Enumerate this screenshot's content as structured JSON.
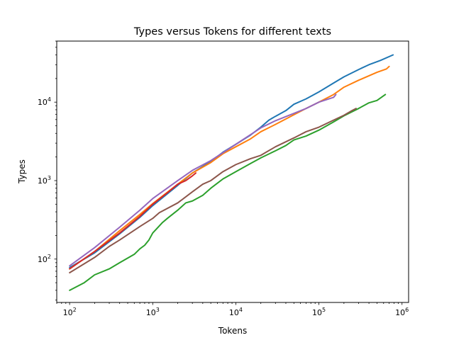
{
  "chart_data": {
    "type": "line",
    "title": "Types versus Tokens for different texts",
    "xlabel": "Tokens",
    "ylabel": "Types",
    "xscale": "log",
    "yscale": "log",
    "xlim": [
      70,
      1200000
    ],
    "ylim": [
      28,
      60000
    ],
    "grid": false,
    "legend": "none",
    "x_ticks": [
      {
        "value": 100,
        "base": "10",
        "exp": "2"
      },
      {
        "value": 1000,
        "base": "10",
        "exp": "3"
      },
      {
        "value": 10000,
        "base": "10",
        "exp": "4"
      },
      {
        "value": 100000,
        "base": "10",
        "exp": "5"
      },
      {
        "value": 1000000,
        "base": "10",
        "exp": "6"
      }
    ],
    "y_ticks": [
      {
        "value": 100,
        "base": "10",
        "exp": "2"
      },
      {
        "value": 1000,
        "base": "10",
        "exp": "3"
      },
      {
        "value": 10000,
        "base": "10",
        "exp": "4"
      }
    ],
    "series": [
      {
        "color": "#1f77b4",
        "points": [
          [
            100,
            78
          ],
          [
            200,
            120
          ],
          [
            400,
            210
          ],
          [
            700,
            340
          ],
          [
            1000,
            480
          ],
          [
            2000,
            870
          ],
          [
            3000,
            1250
          ],
          [
            5000,
            1750
          ],
          [
            7000,
            2300
          ],
          [
            10000,
            2900
          ],
          [
            15000,
            3800
          ],
          [
            20000,
            4800
          ],
          [
            25000,
            5900
          ],
          [
            30000,
            6600
          ],
          [
            40000,
            7800
          ],
          [
            50000,
            9400
          ],
          [
            70000,
            11000
          ],
          [
            100000,
            13500
          ],
          [
            150000,
            17500
          ],
          [
            200000,
            21000
          ],
          [
            300000,
            26000
          ],
          [
            400000,
            30000
          ],
          [
            550000,
            34000
          ],
          [
            780000,
            40000
          ]
        ]
      },
      {
        "color": "#ff7f0e",
        "points": [
          [
            100,
            75
          ],
          [
            200,
            125
          ],
          [
            400,
            230
          ],
          [
            700,
            370
          ],
          [
            1000,
            510
          ],
          [
            2000,
            900
          ],
          [
            3000,
            1250
          ],
          [
            5000,
            1700
          ],
          [
            7000,
            2200
          ],
          [
            10000,
            2700
          ],
          [
            15000,
            3400
          ],
          [
            20000,
            4200
          ],
          [
            30000,
            5200
          ],
          [
            50000,
            6900
          ],
          [
            70000,
            8300
          ],
          [
            100000,
            10000
          ],
          [
            150000,
            12500
          ],
          [
            200000,
            15500
          ],
          [
            300000,
            19000
          ],
          [
            500000,
            24000
          ],
          [
            650000,
            26500
          ],
          [
            700000,
            28500
          ]
        ]
      },
      {
        "color": "#2ca02c",
        "points": [
          [
            100,
            40
          ],
          [
            150,
            50
          ],
          [
            200,
            63
          ],
          [
            300,
            75
          ],
          [
            400,
            90
          ],
          [
            600,
            115
          ],
          [
            700,
            135
          ],
          [
            800,
            150
          ],
          [
            900,
            175
          ],
          [
            1000,
            215
          ],
          [
            1300,
            290
          ],
          [
            1500,
            330
          ],
          [
            2000,
            420
          ],
          [
            2500,
            520
          ],
          [
            3000,
            550
          ],
          [
            4000,
            650
          ],
          [
            5000,
            800
          ],
          [
            7000,
            1050
          ],
          [
            10000,
            1300
          ],
          [
            15000,
            1650
          ],
          [
            20000,
            1950
          ],
          [
            30000,
            2400
          ],
          [
            40000,
            2800
          ],
          [
            50000,
            3300
          ],
          [
            70000,
            3700
          ],
          [
            100000,
            4400
          ],
          [
            150000,
            5600
          ],
          [
            200000,
            6700
          ],
          [
            300000,
            8300
          ],
          [
            400000,
            9800
          ],
          [
            500000,
            10500
          ],
          [
            630000,
            12500
          ]
        ]
      },
      {
        "color": "#d62728",
        "points": [
          [
            100,
            75
          ],
          [
            200,
            125
          ],
          [
            400,
            215
          ],
          [
            700,
            350
          ],
          [
            1000,
            500
          ],
          [
            1500,
            700
          ],
          [
            2000,
            900
          ],
          [
            2500,
            1000
          ],
          [
            3000,
            1150
          ],
          [
            3300,
            1250
          ]
        ]
      },
      {
        "color": "#9467bd",
        "points": [
          [
            100,
            82
          ],
          [
            200,
            140
          ],
          [
            400,
            255
          ],
          [
            700,
            420
          ],
          [
            1000,
            590
          ],
          [
            2000,
            1000
          ],
          [
            3000,
            1350
          ],
          [
            5000,
            1800
          ],
          [
            10000,
            2900
          ],
          [
            20000,
            4700
          ],
          [
            30000,
            5800
          ],
          [
            50000,
            7200
          ],
          [
            70000,
            8300
          ],
          [
            100000,
            10000
          ],
          [
            150000,
            11500
          ],
          [
            160000,
            12500
          ]
        ]
      },
      {
        "color": "#8c564b",
        "points": [
          [
            100,
            67
          ],
          [
            200,
            105
          ],
          [
            300,
            145
          ],
          [
            400,
            175
          ],
          [
            700,
            260
          ],
          [
            1000,
            330
          ],
          [
            1200,
            390
          ],
          [
            2000,
            520
          ],
          [
            3000,
            720
          ],
          [
            4000,
            900
          ],
          [
            5000,
            1000
          ],
          [
            7000,
            1300
          ],
          [
            10000,
            1600
          ],
          [
            15000,
            1900
          ],
          [
            20000,
            2100
          ],
          [
            30000,
            2700
          ],
          [
            50000,
            3500
          ],
          [
            70000,
            4200
          ],
          [
            100000,
            4800
          ],
          [
            150000,
            5900
          ],
          [
            200000,
            6800
          ],
          [
            250000,
            7800
          ],
          [
            280000,
            8300
          ]
        ]
      }
    ]
  }
}
